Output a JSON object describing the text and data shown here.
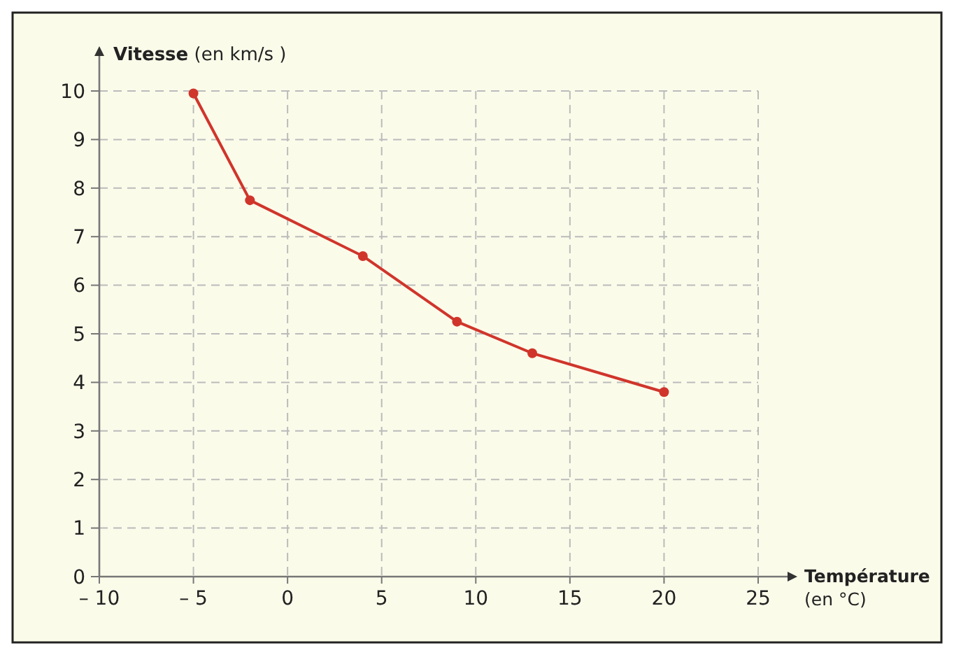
{
  "chart_data": {
    "type": "line",
    "xlabel": "Température (en °C)",
    "ylabel": "Vitesse (en km/s )",
    "x": [
      -5,
      -2,
      4,
      9,
      13,
      20
    ],
    "series": [
      {
        "color": "#d0352b",
        "values": [
          9.95,
          7.75,
          6.6,
          5.25,
          4.6,
          3.8
        ]
      }
    ],
    "xlim": [
      -10,
      25
    ],
    "xticks": [
      {
        "value": -10,
        "label": "– 10"
      },
      {
        "value": -5,
        "label": "– 5"
      },
      0,
      5,
      10,
      15,
      20,
      25
    ],
    "ylim": [
      0,
      10
    ],
    "yticks": [
      0,
      1,
      2,
      3,
      4,
      5,
      6,
      7,
      8,
      9,
      10
    ],
    "grid": true,
    "marker": "circle",
    "line_style": "solid"
  }
}
